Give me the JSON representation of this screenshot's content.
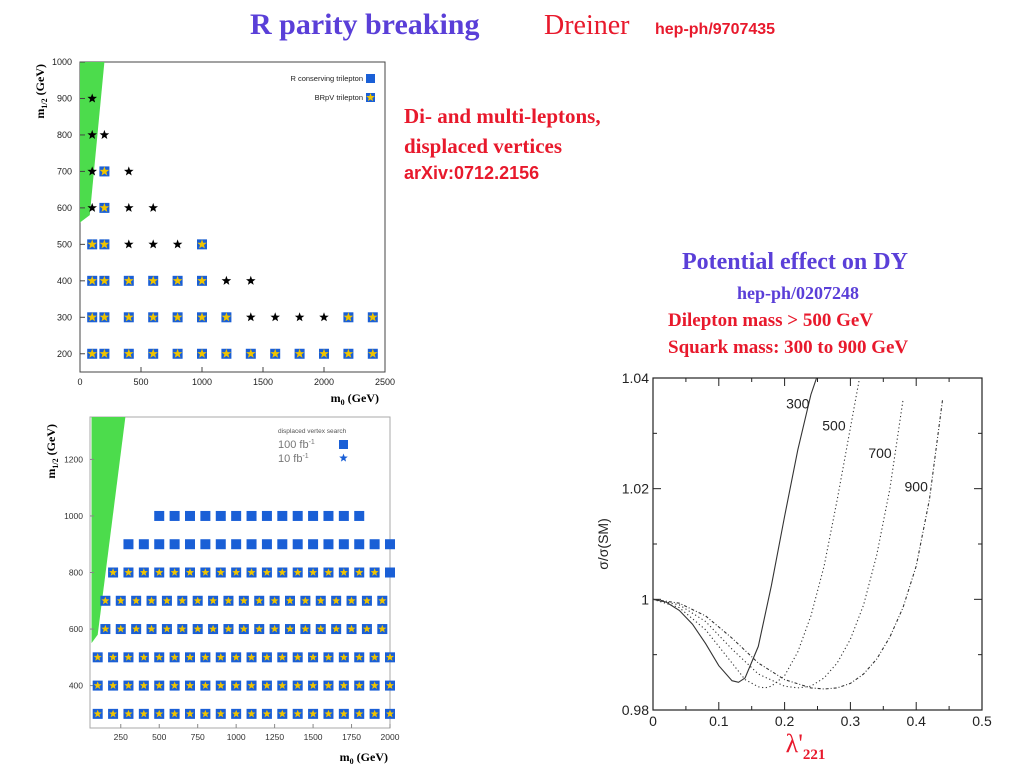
{
  "header": {
    "title": "R parity breaking",
    "author": "Dreiner",
    "reference": "hep-ph/9707435"
  },
  "notes": {
    "line1": "Di- and multi-leptons,",
    "line2": "displaced vertices",
    "line3": "arXiv:0712.2156"
  },
  "dy_panel": {
    "title": "Potential effect on DY",
    "reference": "hep-ph/0207248",
    "condition1": "Dilepton mass > 500 GeV",
    "condition2": "Squark mass: 300 to 900 GeV"
  },
  "colors": {
    "title_blue": "#5a3fd8",
    "red": "#e8192c",
    "green_region": "#4cdc4c",
    "marker_blue": "#1a5fd6",
    "star_yellow": "#f0c400"
  },
  "chart_data": [
    {
      "type": "scatter",
      "title": "",
      "xlabel": "m",
      "xlabel_sub": "0",
      "xlabel_unit": "(GeV)",
      "ylabel": "m",
      "ylabel_sub": "1/2",
      "ylabel_unit": "(GeV)",
      "xlim": [
        0,
        2500
      ],
      "ylim": [
        150,
        1000
      ],
      "xticks": [
        0,
        500,
        1000,
        1500,
        2000,
        2500
      ],
      "yticks": [
        200,
        300,
        400,
        500,
        600,
        700,
        800,
        900,
        1000
      ],
      "legend_position": "top-right",
      "excluded_region": [
        [
          0,
          560
        ],
        [
          80,
          580
        ],
        [
          200,
          1000
        ],
        [
          0,
          1000
        ]
      ],
      "series": [
        {
          "name": "R conserving trilepton",
          "marker": "blue-square",
          "points": [
            [
              100,
              200
            ],
            [
              200,
              200
            ],
            [
              400,
              200
            ],
            [
              600,
              200
            ],
            [
              800,
              200
            ],
            [
              1000,
              200
            ],
            [
              1200,
              200
            ],
            [
              1400,
              200
            ],
            [
              1600,
              200
            ],
            [
              1800,
              200
            ],
            [
              2000,
              200
            ],
            [
              2200,
              200
            ],
            [
              2400,
              200
            ],
            [
              100,
              300
            ],
            [
              200,
              300
            ],
            [
              400,
              300
            ],
            [
              600,
              300
            ],
            [
              800,
              300
            ],
            [
              1000,
              300
            ],
            [
              1200,
              300
            ],
            [
              2200,
              300
            ],
            [
              2400,
              300
            ],
            [
              100,
              400
            ],
            [
              200,
              400
            ],
            [
              400,
              400
            ],
            [
              600,
              400
            ],
            [
              800,
              400
            ],
            [
              1000,
              400
            ],
            [
              100,
              500
            ],
            [
              200,
              500
            ],
            [
              1000,
              500
            ],
            [
              200,
              600
            ],
            [
              200,
              700
            ]
          ]
        },
        {
          "name": "BRpV trilepton",
          "marker": "star",
          "points": [
            [
              100,
              200
            ],
            [
              200,
              200
            ],
            [
              400,
              200
            ],
            [
              600,
              200
            ],
            [
              800,
              200
            ],
            [
              1000,
              200
            ],
            [
              1200,
              200
            ],
            [
              1400,
              200
            ],
            [
              1600,
              200
            ],
            [
              1800,
              200
            ],
            [
              2000,
              200
            ],
            [
              2200,
              200
            ],
            [
              2400,
              200
            ],
            [
              100,
              300
            ],
            [
              200,
              300
            ],
            [
              400,
              300
            ],
            [
              600,
              300
            ],
            [
              800,
              300
            ],
            [
              1000,
              300
            ],
            [
              1200,
              300
            ],
            [
              1400,
              300
            ],
            [
              1600,
              300
            ],
            [
              1800,
              300
            ],
            [
              2000,
              300
            ],
            [
              2200,
              300
            ],
            [
              2400,
              300
            ],
            [
              100,
              400
            ],
            [
              200,
              400
            ],
            [
              400,
              400
            ],
            [
              600,
              400
            ],
            [
              800,
              400
            ],
            [
              1000,
              400
            ],
            [
              1200,
              400
            ],
            [
              1400,
              400
            ],
            [
              100,
              500
            ],
            [
              200,
              500
            ],
            [
              400,
              500
            ],
            [
              600,
              500
            ],
            [
              800,
              500
            ],
            [
              1000,
              500
            ],
            [
              100,
              600
            ],
            [
              200,
              600
            ],
            [
              400,
              600
            ],
            [
              600,
              600
            ],
            [
              100,
              700
            ],
            [
              200,
              700
            ],
            [
              400,
              700
            ],
            [
              100,
              800
            ],
            [
              200,
              800
            ],
            [
              100,
              900
            ]
          ]
        }
      ]
    },
    {
      "type": "scatter",
      "title": "",
      "legend_title": "displaced vertex search",
      "xlabel": "m",
      "xlabel_sub": "0",
      "xlabel_unit": "(GeV)",
      "ylabel": "m",
      "ylabel_sub": "1/2",
      "ylabel_unit": "(GeV)",
      "xlim": [
        50,
        2000
      ],
      "ylim": [
        250,
        1350
      ],
      "xticks": [
        250,
        500,
        750,
        1000,
        1250,
        1500,
        1750,
        2000
      ],
      "yticks": [
        400,
        600,
        800,
        1000,
        1200
      ],
      "legend_position": "top-right",
      "excluded_region": [
        [
          60,
          550
        ],
        [
          100,
          580
        ],
        [
          280,
          1350
        ],
        [
          60,
          1350
        ]
      ],
      "series": [
        {
          "name": "100 fb",
          "name_sup": "-1",
          "marker": "blue-square",
          "rows": [
            {
              "y": 300,
              "x_start": 100,
              "x_end": 2000
            },
            {
              "y": 400,
              "x_start": 100,
              "x_end": 2000
            },
            {
              "y": 500,
              "x_start": 100,
              "x_end": 2000
            },
            {
              "y": 600,
              "x_start": 150,
              "x_end": 2000
            },
            {
              "y": 700,
              "x_start": 150,
              "x_end": 2000
            },
            {
              "y": 800,
              "x_start": 200,
              "x_end": 2000
            },
            {
              "y": 900,
              "x_start": 300,
              "x_end": 2000
            },
            {
              "y": 1000,
              "x_start": 500,
              "x_end": 1800
            }
          ],
          "step": 100
        },
        {
          "name": "10 fb",
          "name_sup": "-1",
          "marker": "star",
          "rows": [
            {
              "y": 300,
              "x_start": 100,
              "x_end": 2000
            },
            {
              "y": 400,
              "x_start": 100,
              "x_end": 2000
            },
            {
              "y": 500,
              "x_start": 100,
              "x_end": 2000
            },
            {
              "y": 600,
              "x_start": 150,
              "x_end": 2000
            },
            {
              "y": 700,
              "x_start": 150,
              "x_end": 2000
            },
            {
              "y": 800,
              "x_start": 200,
              "x_end": 1900
            }
          ],
          "step": 100
        }
      ]
    },
    {
      "type": "line",
      "title": "",
      "xlabel": "λ'",
      "xlabel_sub": "221",
      "ylabel": "σ/σ(SM)",
      "xlim": [
        0,
        0.5
      ],
      "ylim": [
        0.98,
        1.04
      ],
      "xticks": [
        "0",
        "0.1",
        "0.2",
        "0.3",
        "0.4",
        "0.5"
      ],
      "yticks": [
        "0.98",
        "1",
        "1.02",
        "1.04"
      ],
      "series": [
        {
          "name": "300",
          "style": "solid",
          "x": [
            0,
            0.02,
            0.04,
            0.06,
            0.08,
            0.1,
            0.12,
            0.13,
            0.14,
            0.16,
            0.18,
            0.2,
            0.22,
            0.24,
            0.26
          ],
          "y": [
            1.0,
            0.9995,
            0.998,
            0.9955,
            0.992,
            0.988,
            0.9853,
            0.985,
            0.9858,
            0.9915,
            1.0025,
            1.015,
            1.027,
            1.037,
            1.044
          ]
        },
        {
          "name": "500",
          "style": "dotted",
          "x": [
            0,
            0.04,
            0.08,
            0.12,
            0.14,
            0.16,
            0.17,
            0.18,
            0.2,
            0.22,
            0.24,
            0.26,
            0.28,
            0.3,
            0.32
          ],
          "y": [
            1.0,
            0.9985,
            0.9945,
            0.9885,
            0.9855,
            0.9842,
            0.984,
            0.9843,
            0.9862,
            0.9905,
            0.997,
            1.006,
            1.018,
            1.031,
            1.044
          ]
        },
        {
          "name": "700",
          "style": "dotted",
          "x": [
            0,
            0.04,
            0.08,
            0.12,
            0.16,
            0.2,
            0.22,
            0.24,
            0.26,
            0.28,
            0.3,
            0.32,
            0.34,
            0.36,
            0.38
          ],
          "y": [
            1.0,
            0.999,
            0.996,
            0.991,
            0.9865,
            0.9843,
            0.984,
            0.9843,
            0.9858,
            0.9885,
            0.9928,
            0.999,
            1.008,
            1.02,
            1.036
          ]
        },
        {
          "name": "900",
          "style": "dash-dot",
          "x": [
            0,
            0.04,
            0.08,
            0.12,
            0.16,
            0.2,
            0.24,
            0.26,
            0.28,
            0.3,
            0.32,
            0.34,
            0.36,
            0.38,
            0.4,
            0.42,
            0.44
          ],
          "y": [
            1.0,
            0.9993,
            0.997,
            0.993,
            0.9885,
            0.9855,
            0.984,
            0.9838,
            0.984,
            0.9848,
            0.9865,
            0.9892,
            0.9932,
            0.9985,
            1.006,
            1.018,
            1.036
          ]
        }
      ]
    }
  ]
}
